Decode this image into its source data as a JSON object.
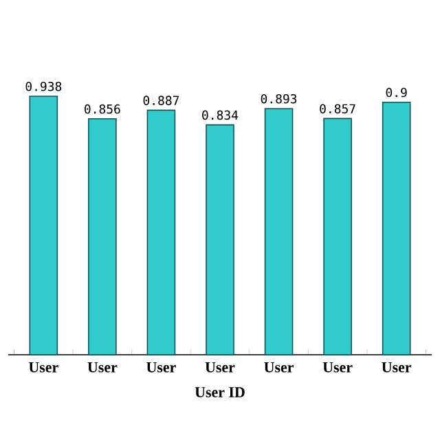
{
  "chart_data": {
    "type": "bar",
    "xlabel": "User ID",
    "categories": [
      "User",
      "User",
      "User",
      "User",
      "User",
      "User",
      "User"
    ],
    "values": [
      0.938,
      0.856,
      0.887,
      0.834,
      0.893,
      0.857,
      0.916
    ],
    "value_labels": [
      "0.938",
      "0.856",
      "0.887",
      "0.834",
      "0.893",
      "0.857",
      "0.9"
    ],
    "color": "#33cccc"
  }
}
